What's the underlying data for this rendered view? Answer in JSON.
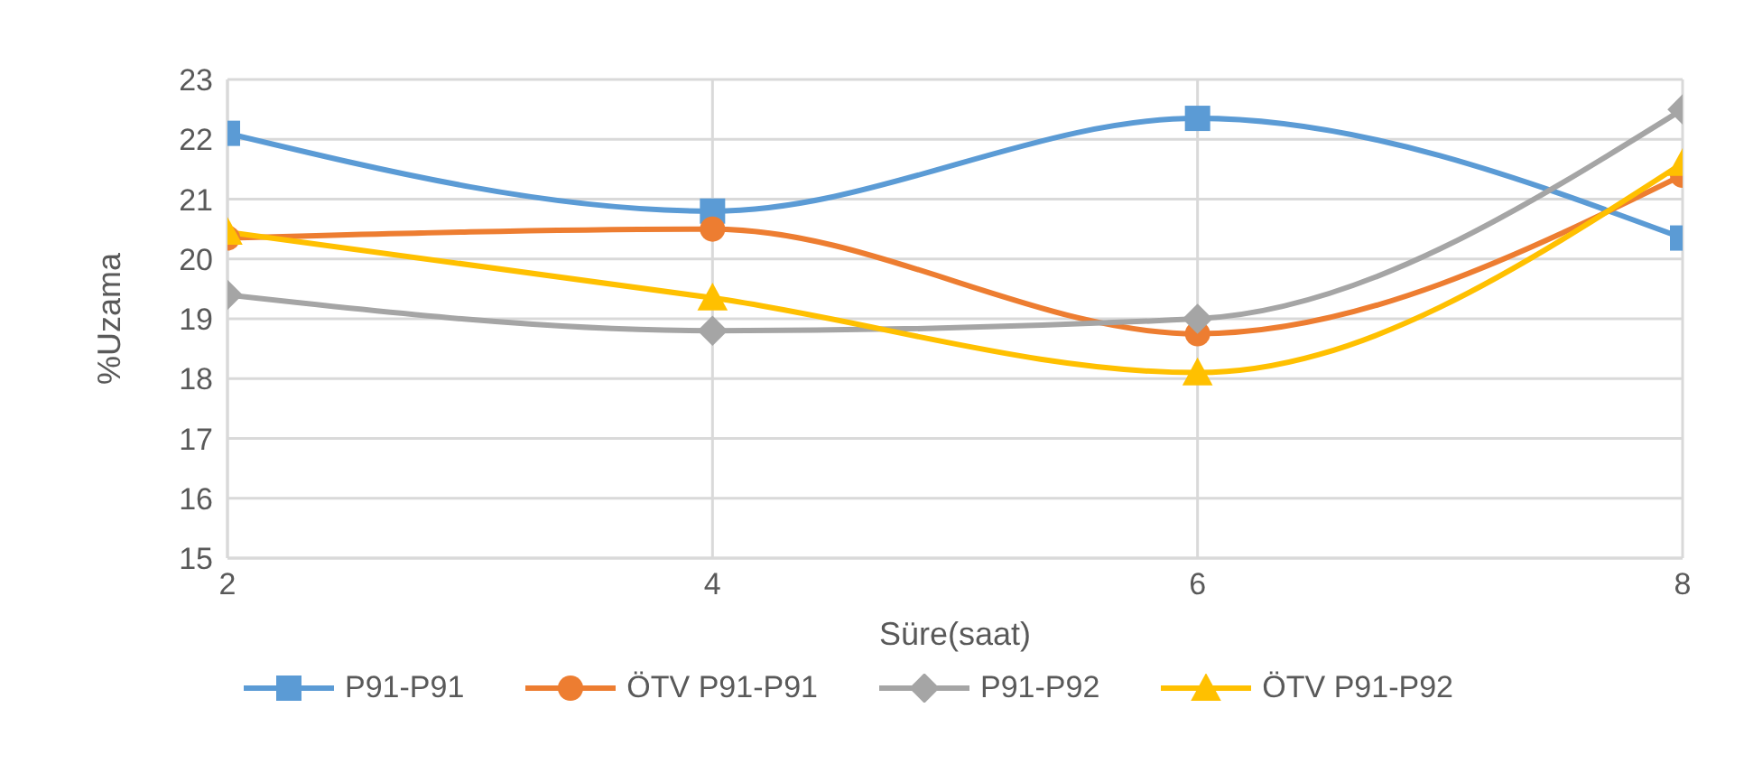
{
  "chart_data": {
    "type": "line",
    "xlabel": "Süre(saat)",
    "ylabel": "%Uzama",
    "x": [
      2,
      4,
      6,
      8
    ],
    "xlim": [
      2,
      8
    ],
    "xticks": [
      2,
      4,
      6,
      8
    ],
    "ylim": [
      15,
      23
    ],
    "yticks": [
      15,
      16,
      17,
      18,
      19,
      20,
      21,
      22,
      23
    ],
    "grid": true,
    "legend": "bottom",
    "line_style": "solid",
    "series": [
      {
        "name": "P91-P91",
        "color": "#5b9bd5",
        "marker": "square",
        "values": [
          22.1,
          20.8,
          22.35,
          20.35
        ]
      },
      {
        "name": "ÖTV P91-P91",
        "color": "#ed7d31",
        "marker": "circle",
        "values": [
          20.35,
          20.5,
          18.75,
          21.4
        ]
      },
      {
        "name": "P91-P92",
        "color": "#a5a5a5",
        "marker": "diamond",
        "values": [
          19.4,
          18.8,
          19.0,
          22.5
        ]
      },
      {
        "name": "ÖTV P91-P92",
        "color": "#ffc000",
        "marker": "triangle",
        "values": [
          20.45,
          19.35,
          18.1,
          21.6
        ]
      }
    ]
  }
}
